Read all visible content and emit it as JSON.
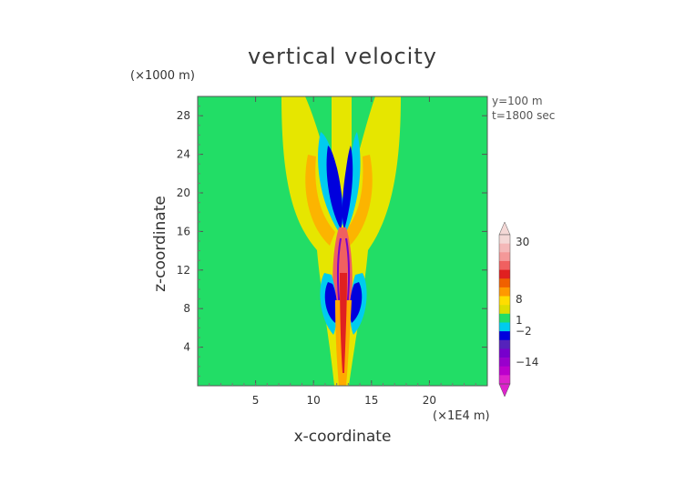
{
  "chart_data": {
    "type": "heatmap",
    "title": "vertical velocity",
    "xlabel": "x-coordinate",
    "ylabel": "z-coordinate",
    "x_unit_label": "(×1E4 m)",
    "y_unit_label": "(×1000 m)",
    "annotations": [
      "y=100 m",
      "t=1800 sec"
    ],
    "xlim": [
      0,
      25
    ],
    "ylim": [
      0,
      30
    ],
    "x_ticks": [
      5,
      10,
      15,
      20
    ],
    "y_ticks": [
      4,
      8,
      12,
      16,
      20,
      24,
      28
    ],
    "colorbar": {
      "labels": [
        "30",
        "8",
        "1",
        "−2",
        "−14"
      ],
      "colors_top_to_bottom": [
        "#f4d8d6",
        "#f4b8b8",
        "#f49898",
        "#f06060",
        "#e02020",
        "#f06000",
        "#ff9900",
        "#ffdd00",
        "#dddd00",
        "#22dd66",
        "#00ccee",
        "#0000dd",
        "#5522bb",
        "#7700cc",
        "#9900cc",
        "#bb00cc",
        "#dd22cc"
      ]
    },
    "background_color": "#22dd66",
    "grid": false
  }
}
